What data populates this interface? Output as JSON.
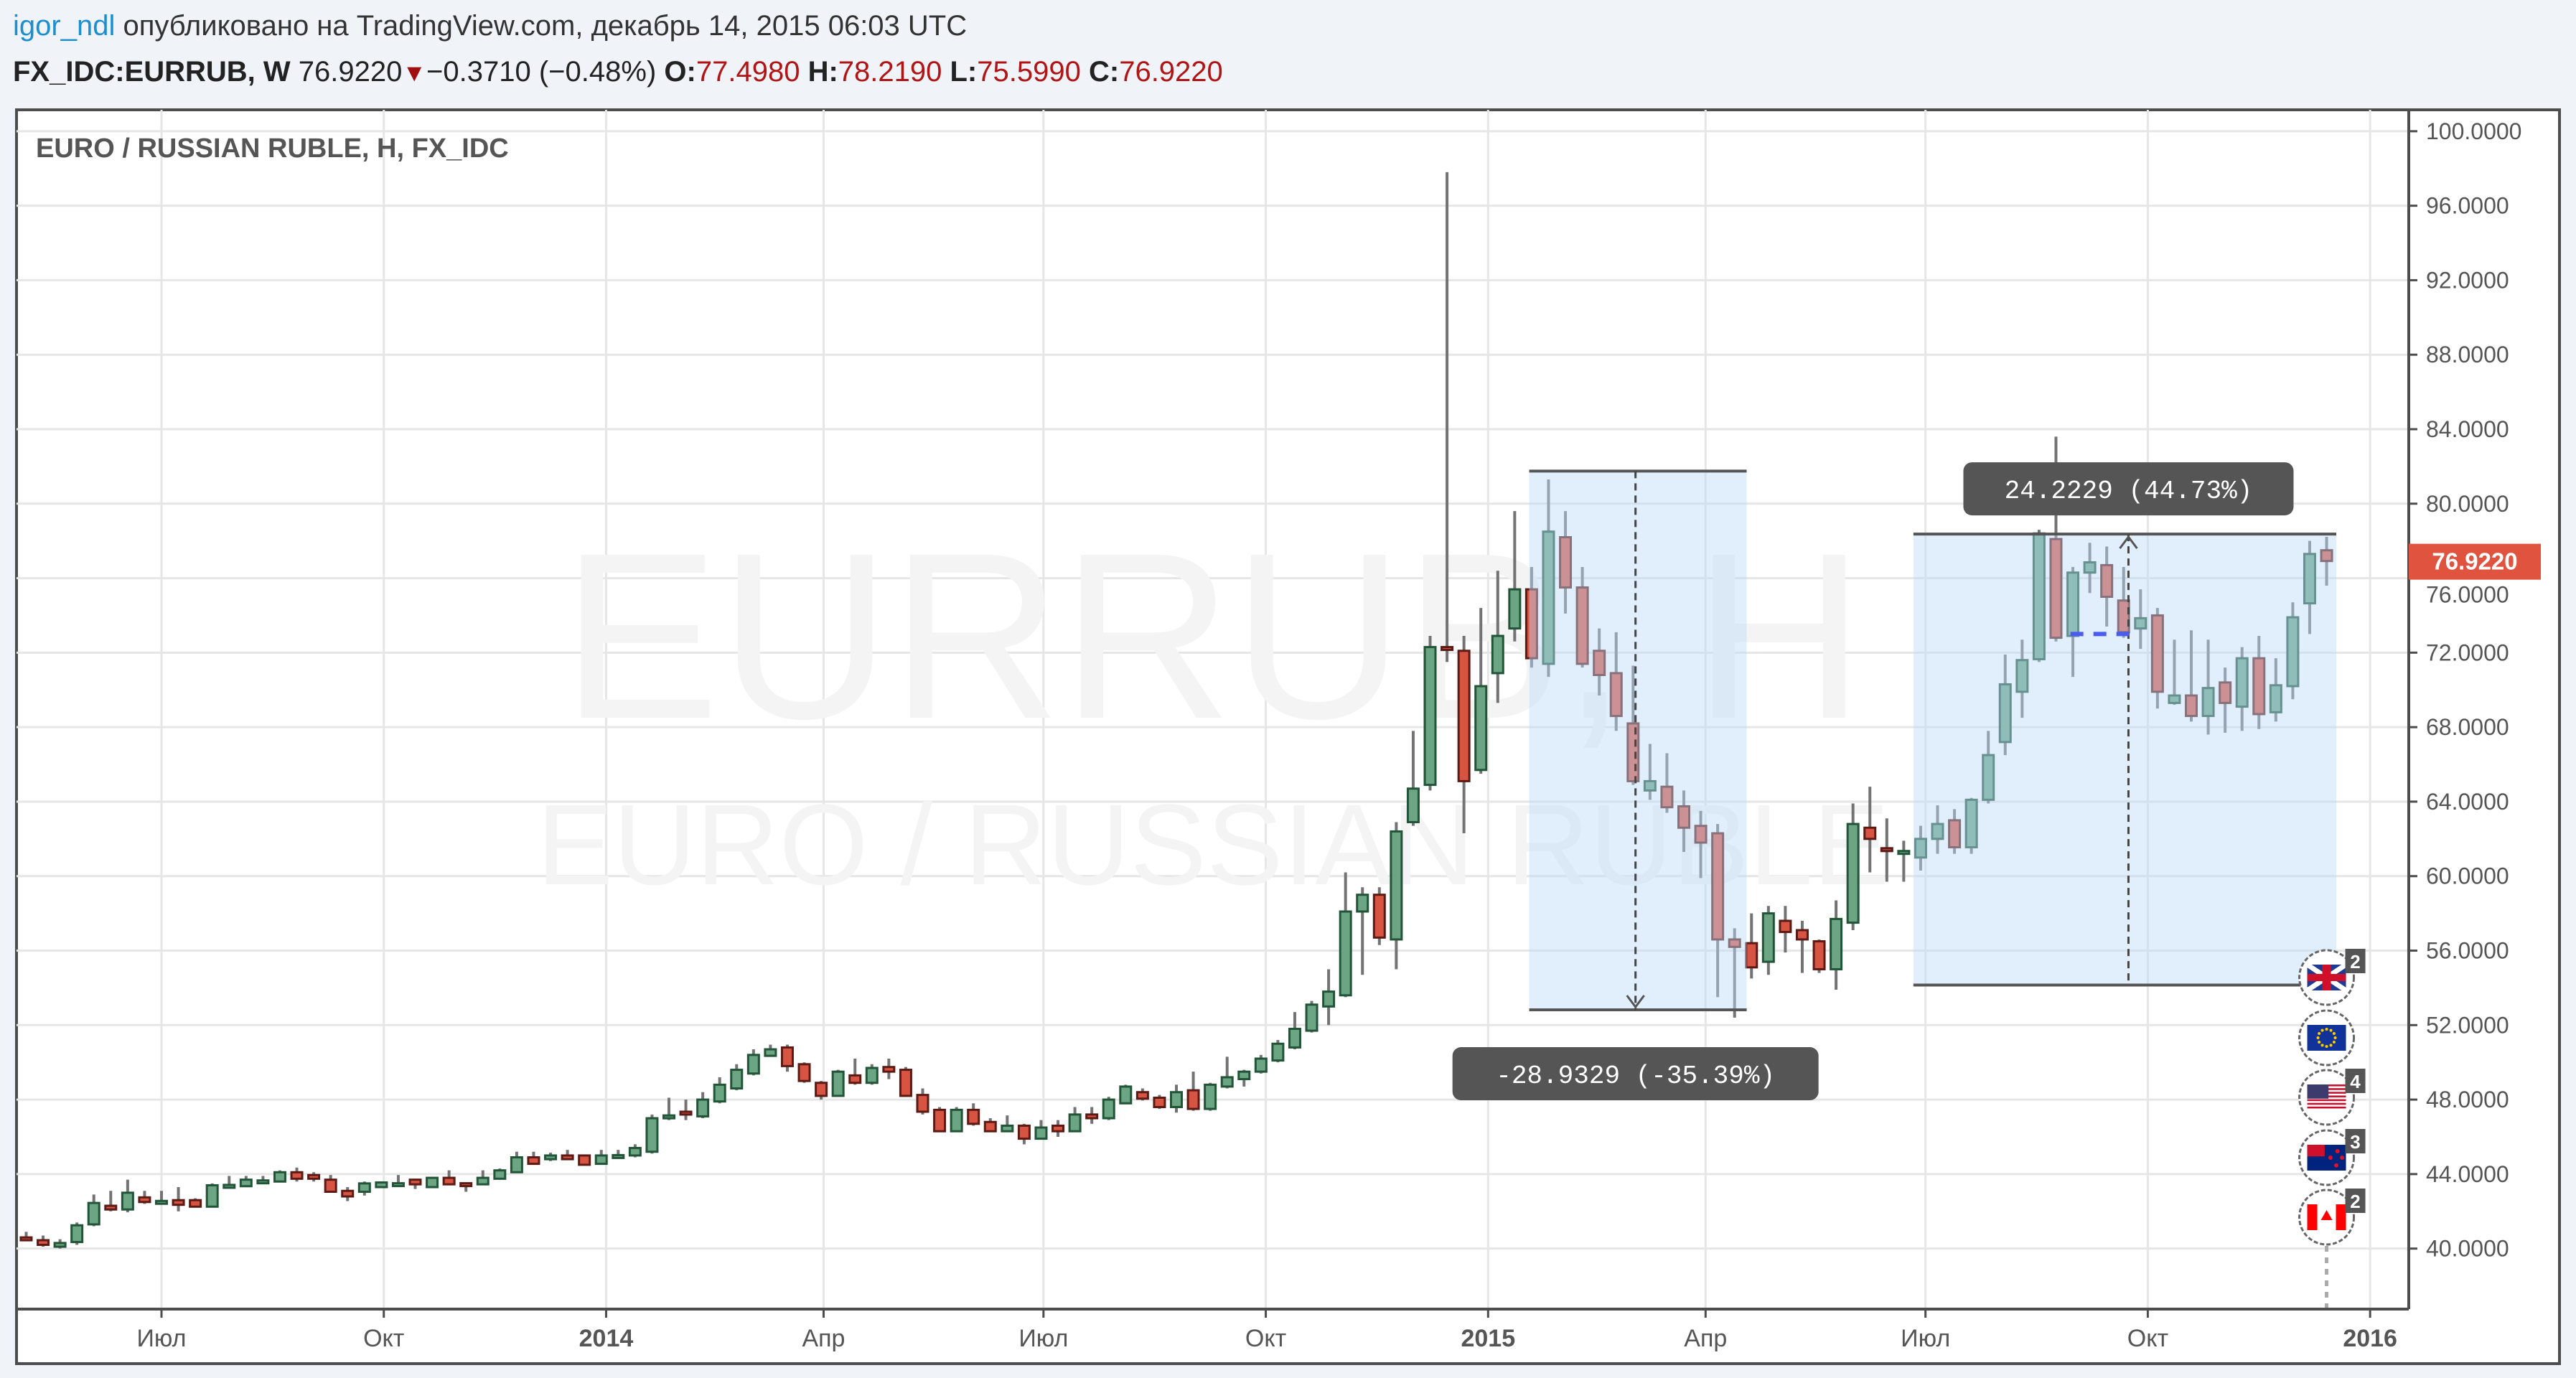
{
  "header": {
    "author": "igor_ndl",
    "published": "опубликовано на TradingView.com, декабрь 14, 2015 06:03 UTC"
  },
  "quote": {
    "symbol": "FX_IDC:EURRUB, W",
    "last": "76.9220",
    "direction_icon": "triangle-down",
    "change": "−0.3710 (−0.48%)",
    "o_label": "O:",
    "o": "77.4980",
    "h_label": "H:",
    "h": "78.2190",
    "l_label": "L:",
    "l": "75.5990",
    "c_label": "C:",
    "c": "76.9220"
  },
  "colors": {
    "up_body": "#6ba583",
    "up_border": "#225437",
    "down_body": "#d75442",
    "down_border": "#5b1a13",
    "wick": "#737375",
    "grid": "#e6e6e6",
    "measure_fill": "#bcdcfb",
    "label_bg": "#555555",
    "last_price_bg": "#e0533f",
    "accent_link": "#1e8fce"
  },
  "chart_data": {
    "type": "candlestick",
    "title": "EURO / RUSSIAN RUBLE, H, FX_IDC",
    "watermark_main": "EURRUB, H",
    "watermark_sub": "EURO / RUSSIAN RUBLE",
    "interval": "W",
    "xlim": [
      "2013-05-02",
      "2016-01-17"
    ],
    "ylim": [
      36.75,
      101.15
    ],
    "grid": true,
    "y_ticks": [
      "100.0000",
      "96.0000",
      "92.0000",
      "88.0000",
      "84.0000",
      "80.0000",
      "76.0000",
      "72.0000",
      "68.0000",
      "64.0000",
      "60.0000",
      "56.0000",
      "52.0000",
      "48.0000",
      "44.0000",
      "40.0000"
    ],
    "x_ticks": [
      {
        "label": "Июл",
        "date": "2013-07-01",
        "bold": false
      },
      {
        "label": "Окт",
        "date": "2013-10-01",
        "bold": false
      },
      {
        "label": "2014",
        "date": "2014-01-01",
        "bold": true
      },
      {
        "label": "Апр",
        "date": "2014-04-01",
        "bold": false
      },
      {
        "label": "Июл",
        "date": "2014-07-01",
        "bold": false
      },
      {
        "label": "Окт",
        "date": "2014-10-01",
        "bold": false
      },
      {
        "label": "2015",
        "date": "2015-01-01",
        "bold": true
      },
      {
        "label": "Апр",
        "date": "2015-04-01",
        "bold": false
      },
      {
        "label": "Июл",
        "date": "2015-07-01",
        "bold": false
      },
      {
        "label": "Окт",
        "date": "2015-10-01",
        "bold": false
      },
      {
        "label": "2016",
        "date": "2016-01-01",
        "bold": true
      }
    ],
    "last_price_label": "76.9220",
    "candles_fields": [
      "date",
      "open",
      "high",
      "low",
      "close"
    ],
    "candles": [
      [
        "2013-05-06",
        40.6,
        40.9,
        40.4,
        40.5
      ],
      [
        "2013-05-13",
        40.45,
        40.7,
        40.1,
        40.2
      ],
      [
        "2013-05-20",
        40.1,
        40.5,
        40.0,
        40.3
      ],
      [
        "2013-05-27",
        40.35,
        41.4,
        40.2,
        41.25
      ],
      [
        "2013-06-03",
        41.3,
        42.9,
        41.2,
        42.45
      ],
      [
        "2013-06-10",
        42.3,
        43.1,
        42.0,
        42.1
      ],
      [
        "2013-06-17",
        42.1,
        43.7,
        41.95,
        43.0
      ],
      [
        "2013-06-24",
        42.75,
        43.1,
        42.4,
        42.5
      ],
      [
        "2013-07-01",
        42.55,
        43.1,
        42.4,
        42.56
      ],
      [
        "2013-07-08",
        42.6,
        43.3,
        42.0,
        42.35
      ],
      [
        "2013-07-15",
        42.6,
        42.7,
        42.2,
        42.25
      ],
      [
        "2013-07-22",
        42.25,
        43.5,
        42.2,
        43.4
      ],
      [
        "2013-07-29",
        43.35,
        43.9,
        43.3,
        43.42
      ],
      [
        "2013-08-05",
        43.35,
        43.9,
        43.3,
        43.7
      ],
      [
        "2013-08-12",
        43.64,
        43.9,
        43.6,
        43.66
      ],
      [
        "2013-08-19",
        43.6,
        44.2,
        43.55,
        44.1
      ],
      [
        "2013-08-26",
        44.1,
        44.35,
        43.6,
        43.75
      ],
      [
        "2013-09-02",
        43.95,
        44.1,
        43.6,
        43.75
      ],
      [
        "2013-09-09",
        43.7,
        43.95,
        43.0,
        43.05
      ],
      [
        "2013-09-16",
        43.1,
        43.3,
        42.55,
        42.8
      ],
      [
        "2013-09-23",
        43.05,
        43.6,
        42.85,
        43.5
      ],
      [
        "2013-09-30",
        43.3,
        43.6,
        43.25,
        43.55
      ],
      [
        "2013-10-07",
        43.49,
        43.95,
        43.45,
        43.51
      ],
      [
        "2013-10-14",
        43.7,
        43.75,
        43.2,
        43.45
      ],
      [
        "2013-10-21",
        43.3,
        43.85,
        43.25,
        43.8
      ],
      [
        "2013-10-28",
        43.8,
        44.2,
        43.4,
        43.45
      ],
      [
        "2013-11-04",
        43.51,
        43.55,
        43.05,
        43.49
      ],
      [
        "2013-11-11",
        43.45,
        44.2,
        43.4,
        43.8
      ],
      [
        "2013-11-18",
        43.75,
        44.3,
        43.7,
        44.2
      ],
      [
        "2013-11-25",
        44.1,
        45.2,
        44.05,
        44.9
      ],
      [
        "2013-12-02",
        44.9,
        45.2,
        44.5,
        44.55
      ],
      [
        "2013-12-09",
        44.8,
        45.15,
        44.7,
        45.0
      ],
      [
        "2013-12-16",
        45.0,
        45.3,
        44.8,
        44.8
      ],
      [
        "2013-12-23",
        45.0,
        45.05,
        44.5,
        44.5
      ],
      [
        "2013-12-30",
        44.55,
        45.3,
        44.5,
        45.0
      ],
      [
        "2014-01-06",
        45.0,
        45.3,
        44.85,
        45.02
      ],
      [
        "2014-01-13",
        45.0,
        45.6,
        44.9,
        45.4
      ],
      [
        "2014-01-20",
        45.2,
        47.2,
        45.1,
        47.0
      ],
      [
        "2014-01-27",
        47.1,
        48.1,
        46.9,
        47.15
      ],
      [
        "2014-02-03",
        47.35,
        48.0,
        46.9,
        47.25
      ],
      [
        "2014-02-10",
        47.1,
        48.4,
        47.0,
        48.0
      ],
      [
        "2014-02-17",
        47.9,
        49.2,
        47.8,
        48.8
      ],
      [
        "2014-02-24",
        48.6,
        49.9,
        48.5,
        49.6
      ],
      [
        "2014-03-03",
        49.4,
        50.7,
        49.3,
        50.4
      ],
      [
        "2014-03-10",
        50.35,
        50.95,
        50.3,
        50.7
      ],
      [
        "2014-03-17",
        50.8,
        50.95,
        49.5,
        49.8
      ],
      [
        "2014-03-24",
        49.9,
        50.0,
        48.9,
        49.0
      ],
      [
        "2014-03-31",
        48.9,
        49.0,
        48.0,
        48.2
      ],
      [
        "2014-04-07",
        48.2,
        49.6,
        48.15,
        49.5
      ],
      [
        "2014-04-14",
        49.3,
        50.2,
        48.8,
        48.9
      ],
      [
        "2014-04-21",
        48.9,
        49.9,
        48.8,
        49.7
      ],
      [
        "2014-04-28",
        49.75,
        50.2,
        49.1,
        49.5
      ],
      [
        "2014-05-05",
        49.6,
        49.75,
        48.2,
        48.2
      ],
      [
        "2014-05-12",
        48.25,
        48.6,
        47.2,
        47.35
      ],
      [
        "2014-05-19",
        47.45,
        47.6,
        46.3,
        46.3
      ],
      [
        "2014-05-26",
        46.3,
        47.6,
        46.3,
        47.45
      ],
      [
        "2014-06-02",
        47.45,
        47.8,
        46.6,
        46.7
      ],
      [
        "2014-06-09",
        46.8,
        47.0,
        46.3,
        46.3
      ],
      [
        "2014-06-16",
        46.3,
        47.15,
        46.25,
        46.6
      ],
      [
        "2014-06-23",
        46.6,
        46.7,
        45.6,
        45.9
      ],
      [
        "2014-06-30",
        45.9,
        46.9,
        45.85,
        46.5
      ],
      [
        "2014-07-07",
        46.6,
        46.9,
        46.0,
        46.3
      ],
      [
        "2014-07-14",
        46.3,
        47.6,
        46.25,
        47.2
      ],
      [
        "2014-07-21",
        47.2,
        47.6,
        46.7,
        47.0
      ],
      [
        "2014-07-28",
        47.0,
        48.15,
        46.9,
        48.0
      ],
      [
        "2014-08-04",
        47.8,
        48.8,
        47.75,
        48.7
      ],
      [
        "2014-08-11",
        48.4,
        48.6,
        47.95,
        48.05
      ],
      [
        "2014-08-18",
        48.1,
        48.25,
        47.5,
        47.6
      ],
      [
        "2014-08-25",
        47.6,
        48.8,
        47.3,
        48.4
      ],
      [
        "2014-09-01",
        48.5,
        49.5,
        47.4,
        47.5
      ],
      [
        "2014-09-08",
        47.5,
        48.9,
        47.4,
        48.8
      ],
      [
        "2014-09-15",
        48.7,
        50.3,
        48.6,
        49.2
      ],
      [
        "2014-09-22",
        49.1,
        49.6,
        48.7,
        49.5
      ],
      [
        "2014-09-29",
        49.5,
        50.4,
        49.4,
        50.2
      ],
      [
        "2014-10-06",
        50.1,
        51.2,
        50.0,
        51.0
      ],
      [
        "2014-10-13",
        50.8,
        52.7,
        50.7,
        51.8
      ],
      [
        "2014-10-20",
        51.7,
        53.3,
        51.6,
        53.1
      ],
      [
        "2014-10-27",
        53.0,
        55.0,
        52.0,
        53.8
      ],
      [
        "2014-11-03",
        53.6,
        60.2,
        53.5,
        58.1
      ],
      [
        "2014-11-10",
        58.1,
        59.4,
        54.7,
        59.0
      ],
      [
        "2014-11-17",
        59.0,
        59.4,
        56.3,
        56.7
      ],
      [
        "2014-11-24",
        56.6,
        62.9,
        55.0,
        62.4
      ],
      [
        "2014-12-01",
        62.9,
        67.8,
        62.7,
        64.7
      ],
      [
        "2014-12-08",
        64.9,
        72.9,
        64.6,
        72.3
      ],
      [
        "2014-12-15",
        72.3,
        97.8,
        71.5,
        72.2
      ],
      [
        "2014-12-22",
        72.1,
        72.9,
        62.3,
        65.1
      ],
      [
        "2014-12-29",
        65.7,
        74.4,
        65.5,
        70.2
      ],
      [
        "2015-01-05",
        70.9,
        76.4,
        69.3,
        72.9
      ],
      [
        "2015-01-12",
        73.3,
        79.6,
        72.6,
        75.4
      ],
      [
        "2015-01-19",
        75.4,
        76.6,
        71.2,
        71.7
      ],
      [
        "2015-01-26",
        71.4,
        81.3,
        70.7,
        78.5
      ],
      [
        "2015-02-02",
        78.2,
        79.6,
        74.1,
        75.5
      ],
      [
        "2015-02-09",
        75.5,
        76.6,
        71.2,
        71.4
      ],
      [
        "2015-02-16",
        72.1,
        73.3,
        69.7,
        70.8
      ],
      [
        "2015-02-23",
        70.9,
        73.1,
        67.8,
        68.6
      ],
      [
        "2015-03-02",
        68.2,
        71.3,
        64.9,
        65.1
      ],
      [
        "2015-03-09",
        64.6,
        67.1,
        64.1,
        65.1
      ],
      [
        "2015-03-16",
        64.8,
        66.6,
        63.4,
        63.7
      ],
      [
        "2015-03-23",
        63.75,
        64.6,
        61.3,
        62.6
      ],
      [
        "2015-03-30",
        62.7,
        63.5,
        59.9,
        61.8
      ],
      [
        "2015-04-06",
        62.3,
        62.8,
        53.5,
        56.6
      ],
      [
        "2015-04-13",
        56.6,
        57.2,
        52.4,
        56.2
      ],
      [
        "2015-04-20",
        56.4,
        58.0,
        54.5,
        55.1
      ],
      [
        "2015-04-27",
        55.4,
        58.4,
        54.7,
        58.0
      ],
      [
        "2015-05-04",
        57.6,
        58.4,
        55.9,
        57.0
      ],
      [
        "2015-05-11",
        57.1,
        57.6,
        54.8,
        56.6
      ],
      [
        "2015-05-18",
        56.5,
        56.6,
        54.8,
        55.0
      ],
      [
        "2015-05-25",
        55.0,
        58.7,
        53.9,
        57.7
      ],
      [
        "2015-06-01",
        57.5,
        63.9,
        57.1,
        62.8
      ],
      [
        "2015-06-08",
        62.6,
        64.8,
        60.2,
        62.0
      ],
      [
        "2015-06-15",
        61.5,
        63.1,
        59.7,
        61.35
      ],
      [
        "2015-06-22",
        61.25,
        61.9,
        59.7,
        61.35
      ],
      [
        "2015-06-29",
        61.0,
        62.7,
        60.3,
        62.0
      ],
      [
        "2015-07-06",
        62.0,
        63.8,
        61.2,
        62.8
      ],
      [
        "2015-07-13",
        63.0,
        63.6,
        61.2,
        61.55
      ],
      [
        "2015-07-20",
        61.55,
        64.2,
        61.2,
        64.1
      ],
      [
        "2015-07-27",
        64.1,
        67.8,
        63.9,
        66.5
      ],
      [
        "2015-08-03",
        67.2,
        71.9,
        66.5,
        70.3
      ],
      [
        "2015-08-10",
        69.9,
        72.7,
        68.5,
        71.6
      ],
      [
        "2015-08-17",
        71.65,
        78.6,
        71.5,
        78.4
      ],
      [
        "2015-08-24",
        78.1,
        83.6,
        72.6,
        72.8
      ],
      [
        "2015-08-31",
        72.9,
        76.6,
        70.7,
        76.3
      ],
      [
        "2015-09-07",
        76.3,
        77.9,
        75.2,
        76.85
      ],
      [
        "2015-09-14",
        76.7,
        77.7,
        73.4,
        75.0
      ],
      [
        "2015-09-21",
        74.8,
        76.6,
        72.8,
        73.1
      ],
      [
        "2015-09-28",
        73.3,
        75.4,
        72.2,
        73.85
      ],
      [
        "2015-10-05",
        74.0,
        74.4,
        69.0,
        69.9
      ],
      [
        "2015-10-12",
        69.3,
        72.7,
        69.2,
        69.7
      ],
      [
        "2015-10-19",
        69.7,
        73.2,
        68.3,
        68.6
      ],
      [
        "2015-10-26",
        68.6,
        72.7,
        67.6,
        70.1
      ],
      [
        "2015-11-02",
        70.4,
        71.2,
        67.7,
        69.3
      ],
      [
        "2015-11-09",
        69.1,
        72.3,
        67.8,
        71.7
      ],
      [
        "2015-11-16",
        71.7,
        72.9,
        67.9,
        68.7
      ],
      [
        "2015-11-23",
        68.8,
        71.7,
        68.3,
        70.25
      ],
      [
        "2015-11-30",
        70.2,
        74.7,
        69.5,
        73.9
      ],
      [
        "2015-12-07",
        74.65,
        78.0,
        73.0,
        77.3
      ],
      [
        "2015-12-14",
        77.498,
        78.219,
        75.599,
        76.922
      ]
    ],
    "measurements": [
      {
        "from_date": "2015-01-18",
        "to_date": "2015-04-18",
        "top": 81.75,
        "bottom": 52.82,
        "marker_date": "2015-03-03",
        "direction": "down",
        "label": "-28.9329 (-35.39%)"
      },
      {
        "from_date": "2015-06-26",
        "to_date": "2015-12-18",
        "top": 78.37,
        "bottom": 54.15,
        "marker_date": "2015-09-23",
        "direction": "up",
        "label": "24.2229 (44.73%)"
      }
    ],
    "horizontal_segment": {
      "from_date": "2015-08-30",
      "to_date": "2015-09-26",
      "price": 73.0,
      "color": "#4a5cf0"
    },
    "events": {
      "date": "2015-12-14",
      "items": [
        {
          "flag": "uk-flag",
          "count": "2"
        },
        {
          "flag": "eu-flag",
          "count": ""
        },
        {
          "flag": "us-flag",
          "count": "4"
        },
        {
          "flag": "nz-flag",
          "count": "3"
        },
        {
          "flag": "canada-flag",
          "count": "2"
        }
      ]
    }
  }
}
